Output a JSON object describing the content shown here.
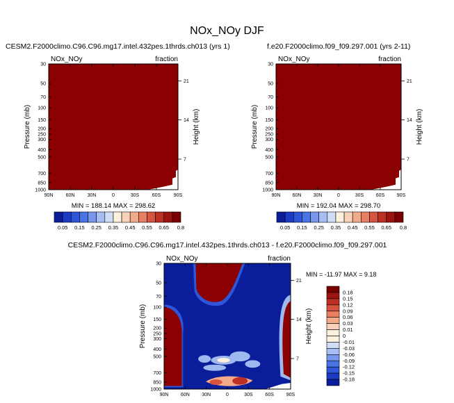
{
  "page_title": "NOx_NOy DJF",
  "colors": {
    "fill_dark_red": "#8b0000",
    "deep_blue": "#0a1e9c",
    "mid_blue": "#2f55d8",
    "light_blue": "#9fb8f0",
    "cream": "#fbf1dc"
  },
  "chart_data": [
    {
      "id": "panel_left",
      "type": "heatmap",
      "title": "CESM2.F2000climo.C96.C96.mg17.intel.432pes.1thrds.ch013 (yrs 1)",
      "variable": "NOx_NOy",
      "units": "fraction",
      "xlabel": "",
      "ylabel": "Pressure (mb)",
      "ylabel_right": "Height (km)",
      "x_ticks": [
        "90N",
        "60N",
        "30N",
        "0",
        "30S",
        "60S",
        "90S"
      ],
      "y_ticks": [
        "30",
        "50",
        "70",
        "100",
        "150",
        "200",
        "250",
        "300",
        "400",
        "500",
        "700",
        "850",
        "1000"
      ],
      "y_right_ticks": [
        "21",
        "14",
        "7"
      ],
      "stats": "MIN = 188.14  MAX = 298.62",
      "fill": "saturated above top colorbar level (0.8)"
    },
    {
      "id": "panel_right",
      "type": "heatmap",
      "title": "f.e20.F2000climo.f09_f09.297.001 (yrs 2-11)",
      "variable": "NOx_NOy",
      "units": "fraction",
      "xlabel": "",
      "ylabel": "Pressure (mb)",
      "ylabel_right": "Height (km)",
      "x_ticks": [
        "90N",
        "60N",
        "30N",
        "0",
        "30S",
        "60S",
        "90S"
      ],
      "y_ticks": [
        "30",
        "50",
        "70",
        "100",
        "150",
        "200",
        "250",
        "300",
        "400",
        "500",
        "700",
        "850",
        "1000"
      ],
      "y_right_ticks": [
        "21",
        "14",
        "7"
      ],
      "stats": "MIN = 192.04  MAX = 298.70",
      "fill": "saturated above top colorbar level (0.8)"
    },
    {
      "id": "panel_diff",
      "type": "heatmap",
      "title": "CESM2.F2000climo.C96.C96.mg17.intel.432pes.1thrds.ch013 - f.e20.F2000climo.f09_f09.297.001",
      "variable": "NOx_NOy",
      "units": "fraction",
      "xlabel": "",
      "ylabel": "Pressure (mb)",
      "ylabel_right": "Height (km)",
      "x_ticks": [
        "90N",
        "60N",
        "30N",
        "0",
        "30S",
        "60S",
        "90S"
      ],
      "y_ticks": [
        "30",
        "50",
        "70",
        "100",
        "150",
        "200",
        "250",
        "300",
        "400",
        "500",
        "700",
        "850",
        "1000"
      ],
      "y_right_ticks": [
        "21",
        "14",
        "7"
      ],
      "stats": "MIN = -11.97  MAX =   9.18"
    }
  ],
  "colorbar_main": {
    "labels": [
      "0.05",
      "0.15",
      "0.25",
      "0.35",
      "0.45",
      "0.55",
      "0.65",
      "0.8"
    ],
    "colors": [
      "#0a1e9c",
      "#1b3bc4",
      "#2f55d8",
      "#4a74e6",
      "#7797ec",
      "#a6bef2",
      "#d1dcf6",
      "#fbf1dc",
      "#f8d2b8",
      "#f2aa8b",
      "#e77f63",
      "#d65440",
      "#bd2e23",
      "#9c1410",
      "#7a0000"
    ]
  },
  "colorbar_diff": {
    "labels": [
      "0.18",
      "0.15",
      "0.12",
      "0.09",
      "0.06",
      "0.03",
      "0.01",
      "0",
      "-0.01",
      "-0.03",
      "-0.06",
      "-0.09",
      "-0.12",
      "-0.15",
      "-0.18"
    ],
    "colors": [
      "#7a0000",
      "#9c1410",
      "#bd2e23",
      "#d65440",
      "#e77f63",
      "#f2aa8b",
      "#f8d2b8",
      "#fbf1dc",
      "#fbf1dc",
      "#d1dcf6",
      "#a6bef2",
      "#7797ec",
      "#4a74e6",
      "#2f55d8",
      "#1b3bc4",
      "#0a1e9c"
    ]
  }
}
